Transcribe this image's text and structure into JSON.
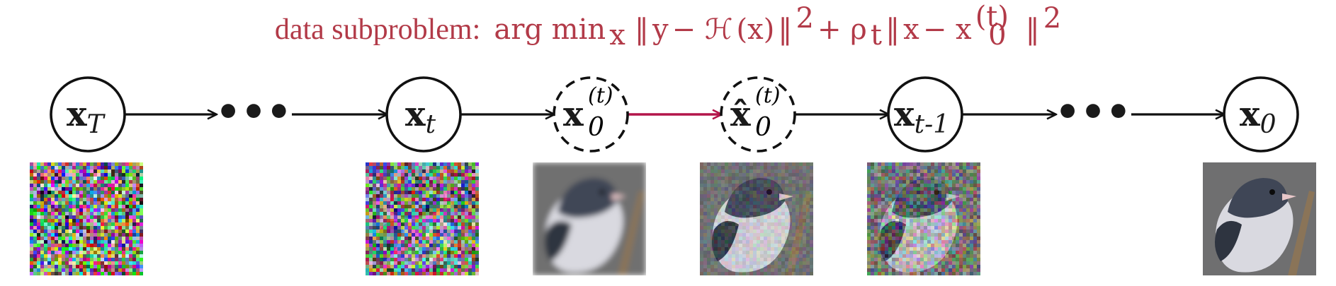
{
  "title": {
    "prefix": "data subproblem:",
    "formula": {
      "argmin": "arg min",
      "argmin_sub": "x",
      "norm_open": "‖",
      "y": "y",
      "minus": " − ",
      "H": "ℋ",
      "x_paren": "(x)",
      "norm_close": "‖",
      "sq": "2",
      "plus": " + ",
      "rho": "ρ",
      "rho_sub": "t",
      "x": "x",
      "x0": "x",
      "x0_sub": "0",
      "x0_sup": "(t)"
    }
  },
  "nodes": [
    {
      "id": "xT",
      "main": "x",
      "sub": "T",
      "sup": "",
      "hat": false,
      "dashed": false
    },
    {
      "id": "xt",
      "main": "x",
      "sub": "t",
      "sup": "",
      "hat": false,
      "dashed": false
    },
    {
      "id": "x0t",
      "main": "x",
      "sub": "0",
      "sup": "(t)",
      "hat": false,
      "dashed": true
    },
    {
      "id": "x0t_hat",
      "main": "x̂",
      "sub": "0",
      "sup": "(t)",
      "hat": true,
      "dashed": true
    },
    {
      "id": "xt_minus_1",
      "main": "x",
      "sub": "t-1",
      "sup": "",
      "hat": false,
      "dashed": false
    },
    {
      "id": "x0",
      "main": "x",
      "sub": "0",
      "sup": "",
      "hat": false,
      "dashed": false
    }
  ],
  "ellipses": [
    "•••",
    "•••"
  ],
  "images": [
    {
      "id": "noise-full",
      "kind": "noise",
      "noise_level": 1.0
    },
    {
      "id": "noise-partial",
      "kind": "bird",
      "noise_level": 0.85
    },
    {
      "id": "bird-blurry",
      "kind": "bird",
      "noise_level": 0.0,
      "blur": true
    },
    {
      "id": "bird-refined",
      "kind": "bird",
      "noise_level": 0.15
    },
    {
      "id": "bird-noisy",
      "kind": "bird",
      "noise_level": 0.4
    },
    {
      "id": "bird-clean",
      "kind": "bird",
      "noise_level": 0.0
    }
  ],
  "colors": {
    "title": "#b23a48",
    "highlight_arrow": "#b3154a",
    "arrow": "#111111",
    "bird_head": "#3f4656",
    "bird_belly": "#d9d9e0",
    "bird_bg": "#6f6f70",
    "branch": "#8a7458"
  }
}
